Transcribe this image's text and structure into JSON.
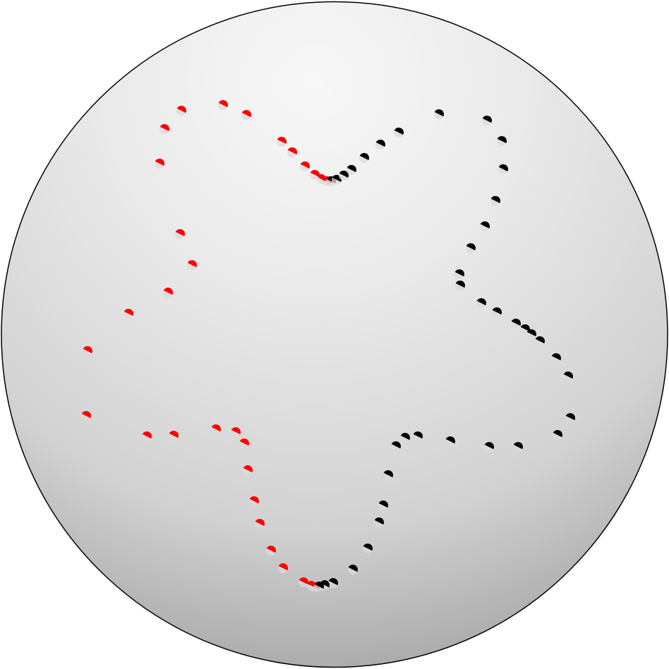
{
  "colors": {
    "background": "#ffffff",
    "sphere_highlight": "#f7f7f7",
    "sphere_mid": "#dcdcdc",
    "sphere_shadow": "#9e9e9e",
    "curve_red": "#ff0000",
    "curve_black": "#000000",
    "dot_halo": "#d9d9d9"
  },
  "sphere": {
    "shading": "radial-gradient",
    "light_direction": "top-left"
  },
  "curve": {
    "description_shape": "closed star-shaped curve on sphere",
    "red_points": [
      [
        463,
        257
      ],
      [
        455,
        254
      ],
      [
        446,
        248
      ],
      [
        432,
        236
      ],
      [
        414,
        216
      ],
      [
        399,
        201
      ],
      [
        349,
        163
      ],
      [
        316,
        149
      ],
      [
        257,
        157
      ],
      [
        233,
        183
      ],
      [
        226,
        232
      ],
      [
        255,
        332
      ],
      [
        272,
        376
      ],
      [
        238,
        415
      ],
      [
        182,
        445
      ],
      [
        124,
        498
      ],
      [
        122,
        590
      ],
      [
        208,
        619
      ],
      [
        246,
        618
      ],
      [
        306,
        609
      ],
      [
        334,
        613
      ],
      [
        346,
        629
      ],
      [
        351,
        667
      ],
      [
        360,
        711
      ],
      [
        368,
        743
      ],
      [
        384,
        781
      ],
      [
        401,
        806
      ],
      [
        430,
        826
      ],
      [
        441,
        831
      ],
      [
        446,
        833
      ]
    ],
    "black_points": [
      [
        469,
        257
      ],
      [
        477,
        255
      ],
      [
        487,
        249
      ],
      [
        498,
        241
      ],
      [
        516,
        224
      ],
      [
        539,
        205
      ],
      [
        565,
        188
      ],
      [
        622,
        162
      ],
      [
        690,
        171
      ],
      [
        711,
        200
      ],
      [
        713,
        240
      ],
      [
        702,
        285
      ],
      [
        687,
        321
      ],
      [
        667,
        352
      ],
      [
        651,
        389
      ],
      [
        652,
        405
      ],
      [
        682,
        430
      ],
      [
        704,
        443
      ],
      [
        731,
        459
      ],
      [
        744,
        467
      ],
      [
        753,
        474
      ],
      [
        765,
        484
      ],
      [
        788,
        508
      ],
      [
        805,
        534
      ],
      [
        808,
        593
      ],
      [
        790,
        617
      ],
      [
        734,
        634
      ],
      [
        693,
        634
      ],
      [
        638,
        626
      ],
      [
        592,
        619
      ],
      [
        574,
        621
      ],
      [
        561,
        633
      ],
      [
        550,
        674
      ],
      [
        543,
        717
      ],
      [
        537,
        741
      ],
      [
        521,
        778
      ],
      [
        500,
        808
      ],
      [
        472,
        827
      ],
      [
        460,
        830
      ],
      [
        452,
        832
      ]
    ]
  }
}
